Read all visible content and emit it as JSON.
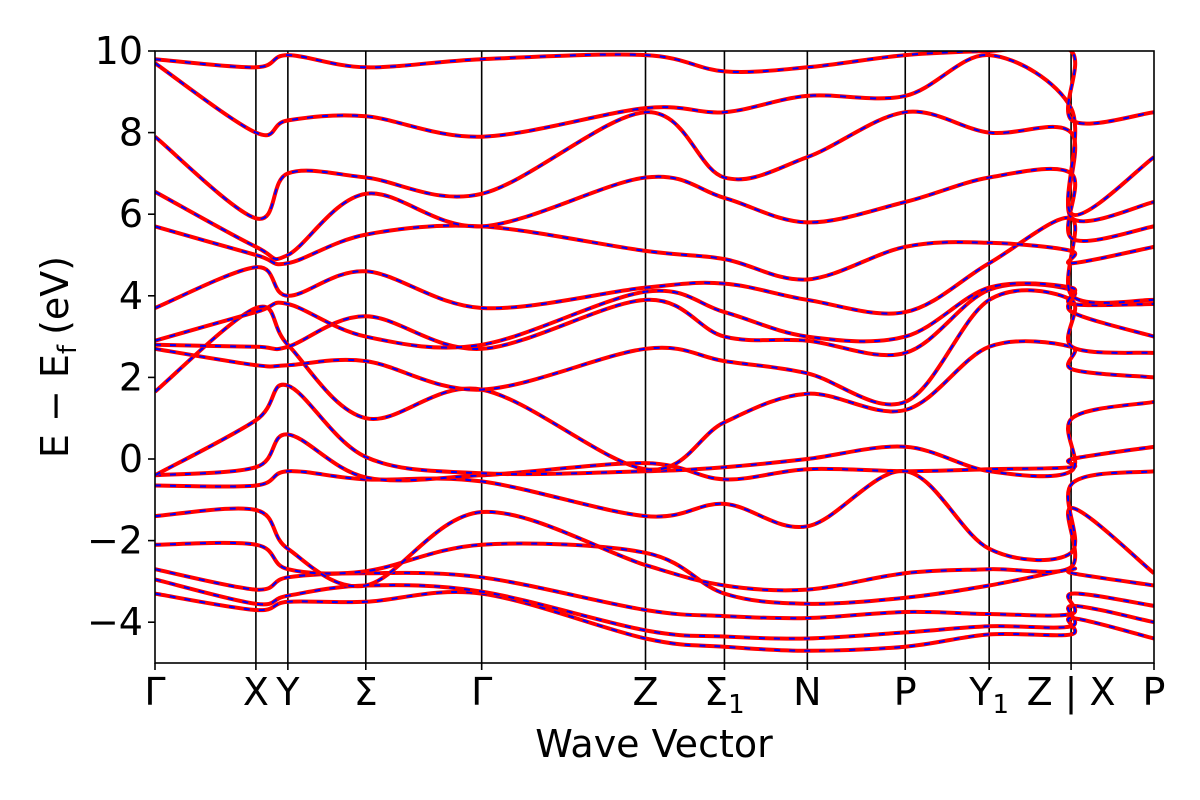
{
  "chart_data": {
    "type": "line",
    "title": "",
    "xlabel": "Wave Vector",
    "ylabel": "E − E",
    "ylabel_subscript": "f",
    "ylabel_unit": "(eV)",
    "ylim": [
      -5,
      10
    ],
    "yticks": [
      "−4",
      "−2",
      "0",
      "2",
      "4",
      "6",
      "8",
      "10"
    ],
    "ytick_values": [
      -4,
      -2,
      0,
      2,
      4,
      6,
      8,
      10
    ],
    "xlim": [
      0,
      1
    ],
    "kpoints": [
      {
        "label": "Γ",
        "x": 0.0
      },
      {
        "label": "X",
        "x": 0.101
      },
      {
        "label": "Y",
        "x": 0.133
      },
      {
        "label": "Σ",
        "x": 0.211
      },
      {
        "label": "Γ",
        "x": 0.327
      },
      {
        "label": "Z",
        "x": 0.491
      },
      {
        "label": "Σ",
        "sub": "1",
        "x": 0.57
      },
      {
        "label": "N",
        "x": 0.653
      },
      {
        "label": "P",
        "x": 0.751
      },
      {
        "label": "Y",
        "sub": "1",
        "x": 0.835
      },
      {
        "label": "Z | X",
        "x": 0.917
      },
      {
        "label": "P",
        "x": 1.0
      }
    ],
    "grid": false,
    "legend": "none",
    "series_colors": {
      "primary": "#ff0000",
      "overlay": "#0000ff"
    },
    "bands": [
      {
        "x": [
          0,
          0.101,
          0.133,
          0.211,
          0.327,
          0.491,
          0.57,
          0.653,
          0.751,
          0.835,
          0.917,
          0.918,
          1.0
        ],
        "y": [
          -3.3,
          -3.7,
          -3.5,
          -3.5,
          -3.3,
          -4.4,
          -4.6,
          -4.7,
          -4.6,
          -4.3,
          -4.3,
          -3.9,
          -4.4
        ]
      },
      {
        "x": [
          0,
          0.101,
          0.133,
          0.211,
          0.327,
          0.491,
          0.57,
          0.653,
          0.751,
          0.835,
          0.917,
          0.918,
          1.0
        ],
        "y": [
          -2.95,
          -3.55,
          -3.35,
          -3.1,
          -3.25,
          -4.2,
          -4.35,
          -4.4,
          -4.25,
          -4.1,
          -4.1,
          -3.6,
          -4.0
        ]
      },
      {
        "x": [
          0,
          0.101,
          0.133,
          0.211,
          0.327,
          0.491,
          0.57,
          0.653,
          0.751,
          0.835,
          0.917,
          0.918,
          1.0
        ],
        "y": [
          -2.7,
          -3.2,
          -2.9,
          -2.8,
          -2.9,
          -3.7,
          -3.85,
          -3.9,
          -3.75,
          -3.8,
          -3.8,
          -3.3,
          -3.6
        ]
      },
      {
        "x": [
          0,
          0.101,
          0.133,
          0.211,
          0.327,
          0.491,
          0.57,
          0.653,
          0.751,
          0.835,
          0.917,
          0.918,
          1.0
        ],
        "y": [
          -2.1,
          -2.1,
          -2.7,
          -2.75,
          -2.1,
          -2.3,
          -3.3,
          -3.55,
          -3.4,
          -3.1,
          -2.7,
          -2.8,
          -3.1
        ]
      },
      {
        "x": [
          0,
          0.101,
          0.133,
          0.211,
          0.327,
          0.491,
          0.57,
          0.653,
          0.751,
          0.835,
          0.917,
          0.918,
          1.0
        ],
        "y": [
          -1.4,
          -1.25,
          -2.2,
          -3.1,
          -1.3,
          -2.6,
          -3.1,
          -3.2,
          -2.8,
          -2.7,
          -2.65,
          -1.2,
          -2.8
        ]
      },
      {
        "x": [
          0,
          0.101,
          0.133,
          0.211,
          0.327,
          0.491,
          0.57,
          0.653,
          0.751,
          0.835,
          0.917,
          0.918,
          1.0
        ],
        "y": [
          -0.65,
          -0.65,
          -0.3,
          -0.5,
          -0.55,
          -1.4,
          -1.1,
          -1.65,
          -0.3,
          -2.2,
          -2.3,
          -0.6,
          -0.3
        ]
      },
      {
        "x": [
          0,
          0.101,
          0.133,
          0.211,
          0.327,
          0.491,
          0.57,
          0.653,
          0.751,
          0.835,
          0.917,
          0.918,
          1.0
        ],
        "y": [
          -0.4,
          -0.2,
          0.6,
          -0.45,
          -0.4,
          -0.1,
          -0.5,
          -0.25,
          -0.3,
          -0.25,
          -0.2,
          0.0,
          0.3
        ]
      },
      {
        "x": [
          0,
          0.101,
          0.133,
          0.211,
          0.327,
          0.491,
          0.57,
          0.653,
          0.751,
          0.835,
          0.917,
          0.918,
          1.0
        ],
        "y": [
          -0.4,
          0.95,
          1.8,
          0.05,
          -0.35,
          -0.3,
          -0.2,
          0.0,
          0.3,
          -0.3,
          -0.3,
          1.0,
          1.4
        ]
      },
      {
        "x": [
          0,
          0.101,
          0.133,
          0.211,
          0.327,
          0.491,
          0.57,
          0.653,
          0.751,
          0.835,
          0.917,
          0.918,
          1.0
        ],
        "y": [
          1.65,
          3.7,
          2.8,
          1.0,
          1.7,
          -0.25,
          0.9,
          1.6,
          1.2,
          2.75,
          2.75,
          2.2,
          2.0
        ]
      },
      {
        "x": [
          0,
          0.101,
          0.133,
          0.211,
          0.327,
          0.491,
          0.57,
          0.653,
          0.751,
          0.835,
          0.917,
          0.918,
          1.0
        ],
        "y": [
          2.7,
          2.3,
          2.3,
          2.4,
          1.7,
          2.7,
          2.4,
          2.1,
          1.4,
          3.9,
          3.9,
          2.75,
          2.6
        ]
      },
      {
        "x": [
          0,
          0.101,
          0.133,
          0.211,
          0.327,
          0.491,
          0.57,
          0.653,
          0.751,
          0.835,
          0.917,
          0.918,
          1.0
        ],
        "y": [
          2.8,
          2.75,
          2.75,
          3.5,
          2.7,
          3.9,
          3.0,
          2.9,
          2.6,
          4.15,
          4.15,
          3.6,
          3.0
        ]
      },
      {
        "x": [
          0,
          0.101,
          0.133,
          0.211,
          0.327,
          0.491,
          0.57,
          0.653,
          0.751,
          0.835,
          0.917,
          0.918,
          1.0
        ],
        "y": [
          2.9,
          3.6,
          3.8,
          3.0,
          2.8,
          4.1,
          3.6,
          3.0,
          3.0,
          4.2,
          4.2,
          3.8,
          3.8
        ]
      },
      {
        "x": [
          0,
          0.101,
          0.133,
          0.211,
          0.327,
          0.491,
          0.57,
          0.653,
          0.751,
          0.835,
          0.917,
          0.918,
          1.0
        ],
        "y": [
          3.7,
          4.7,
          4.0,
          4.6,
          3.7,
          4.2,
          4.3,
          3.9,
          3.6,
          4.8,
          5.9,
          4.0,
          3.9
        ]
      },
      {
        "x": [
          0,
          0.101,
          0.133,
          0.211,
          0.327,
          0.491,
          0.57,
          0.653,
          0.751,
          0.835,
          0.917,
          0.918,
          1.0
        ],
        "y": [
          5.7,
          5.0,
          4.8,
          5.5,
          5.7,
          5.1,
          4.9,
          4.4,
          5.2,
          5.3,
          5.1,
          4.8,
          5.2
        ]
      },
      {
        "x": [
          0,
          0.101,
          0.133,
          0.211,
          0.327,
          0.491,
          0.57,
          0.653,
          0.751,
          0.835,
          0.917,
          0.918,
          1.0
        ],
        "y": [
          6.55,
          5.2,
          5.0,
          6.5,
          5.7,
          6.9,
          6.4,
          5.8,
          6.3,
          6.9,
          7.0,
          5.4,
          5.7
        ]
      },
      {
        "x": [
          0,
          0.101,
          0.133,
          0.211,
          0.327,
          0.491,
          0.57,
          0.653,
          0.751,
          0.835,
          0.917,
          0.918,
          1.0
        ],
        "y": [
          7.9,
          5.9,
          7.0,
          6.9,
          6.5,
          8.5,
          6.9,
          7.4,
          8.5,
          8.0,
          8.0,
          5.9,
          6.3
        ]
      },
      {
        "x": [
          0,
          0.101,
          0.133,
          0.211,
          0.327,
          0.491,
          0.57,
          0.653,
          0.751,
          0.835,
          0.917,
          0.918,
          1.0
        ],
        "y": [
          9.7,
          8.0,
          8.3,
          8.4,
          7.9,
          8.6,
          8.5,
          8.9,
          8.9,
          9.9,
          8.6,
          6.0,
          7.4
        ]
      },
      {
        "x": [
          0,
          0.101,
          0.133,
          0.211,
          0.327,
          0.491,
          0.57,
          0.653,
          0.751,
          0.835,
          0.917,
          0.918,
          1.0
        ],
        "y": [
          9.8,
          9.6,
          9.9,
          9.6,
          9.8,
          9.9,
          9.5,
          9.6,
          9.9,
          10.0,
          10.0,
          8.3,
          8.5
        ]
      }
    ]
  }
}
